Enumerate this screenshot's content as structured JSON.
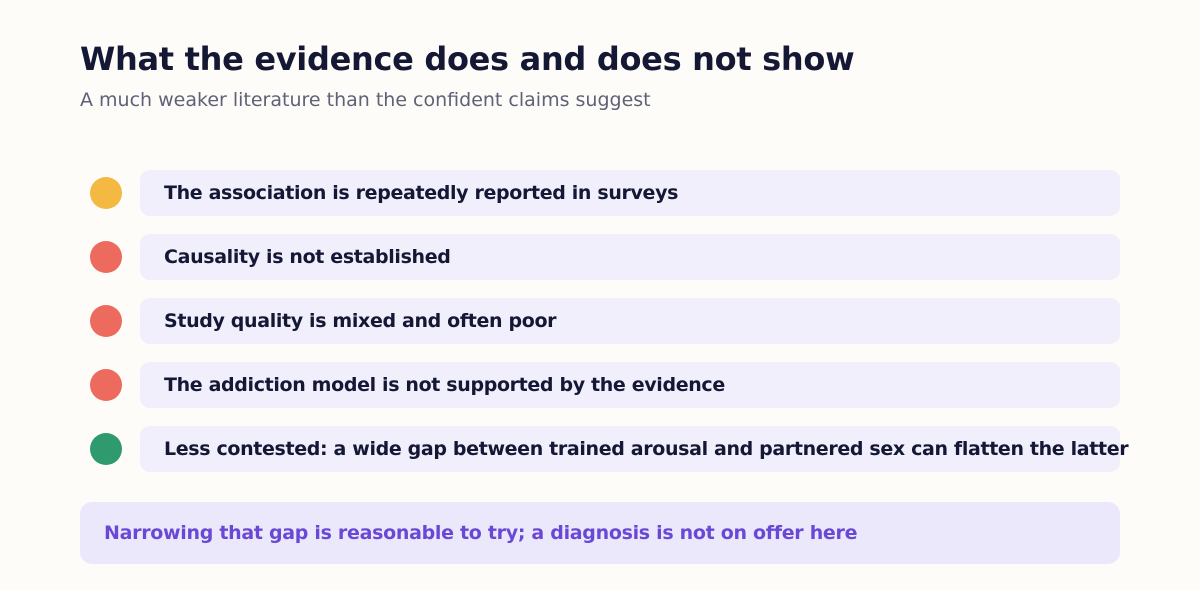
{
  "header": {
    "title": "What the evidence does and does not show",
    "subtitle": "A much weaker literature than the confident claims suggest"
  },
  "findings": [
    {
      "text": "The association is repeatedly reported in surveys",
      "status_color": "#f4b942"
    },
    {
      "text": "Causality is not established",
      "status_color": "#ec6a5e"
    },
    {
      "text": "Study quality is mixed and often poor",
      "status_color": "#ec6a5e"
    },
    {
      "text": "The addiction model is not supported by the evidence",
      "status_color": "#ec6a5e"
    },
    {
      "text": "Less contested: a wide gap between trained arousal and partnered sex can flatten the latter",
      "status_color": "#2e9a6e"
    }
  ],
  "footer": {
    "note": "Narrowing that gap is reasonable to try; a diagnosis is not on offer here"
  },
  "colors": {
    "title": "#141834",
    "subtitle": "#5f6178",
    "pill_background": "#f1effc",
    "footer_background": "#ebe8fb",
    "footer_text": "#6a48d6",
    "amber": "#f4b942",
    "red": "#ec6a5e",
    "green": "#2e9a6e"
  }
}
